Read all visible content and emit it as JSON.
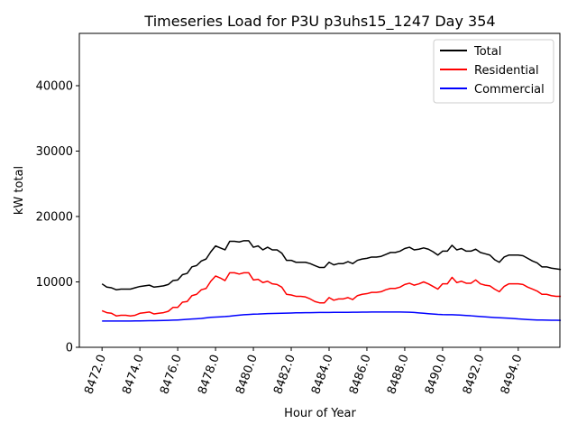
{
  "chart_data": {
    "type": "line",
    "title": "Timeseries Load for P3U p3uhs15_1247  Day 354",
    "xlabel": "Hour of Year",
    "ylabel": "kW total",
    "xlim": [
      8470.8,
      8496.2
    ],
    "ylim": [
      0,
      48000
    ],
    "x_ticks": [
      8472,
      8474,
      8476,
      8478,
      8480,
      8482,
      8484,
      8486,
      8488,
      8490,
      8492,
      8494
    ],
    "x_tick_labels": [
      "8472.0",
      "8474.0",
      "8476.0",
      "8478.0",
      "8480.0",
      "8482.0",
      "8484.0",
      "8486.0",
      "8488.0",
      "8490.0",
      "8492.0",
      "8494.0"
    ],
    "y_ticks": [
      0,
      10000,
      20000,
      30000,
      40000
    ],
    "y_tick_labels": [
      "0",
      "10000",
      "20000",
      "30000",
      "40000"
    ],
    "legend_position": "top-right",
    "x_start": 8472.0,
    "x_step": 0.25,
    "series": [
      {
        "name": "Total",
        "color": "#000000",
        "values": [
          9700,
          9200,
          9100,
          8800,
          8900,
          8900,
          8900,
          9100,
          9300,
          9400,
          9500,
          9200,
          9300,
          9400,
          9600,
          10200,
          10300,
          11100,
          11300,
          12300,
          12500,
          13200,
          13500,
          14600,
          15500,
          15200,
          14900,
          16200,
          16200,
          16100,
          16300,
          16300,
          15300,
          15500,
          14900,
          15300,
          14900,
          14900,
          14400,
          13300,
          13300,
          13000,
          13000,
          13000,
          12800,
          12500,
          12200,
          12200,
          13000,
          12600,
          12800,
          12800,
          13100,
          12800,
          13300,
          13500,
          13600,
          13800,
          13800,
          13900,
          14200,
          14500,
          14500,
          14700,
          15100,
          15300,
          14900,
          15000,
          15200,
          15000,
          14600,
          14100,
          14700,
          14700,
          15600,
          14900,
          15100,
          14700,
          14700,
          15000,
          14500,
          14300,
          14100,
          13400,
          13000,
          13800,
          14100,
          14100,
          14100,
          14000,
          13600,
          13200,
          12900,
          12300,
          12300,
          12100,
          12000,
          11900
        ]
      },
      {
        "name": "Residential",
        "color": "#ff0000",
        "values": [
          5600,
          5300,
          5200,
          4800,
          4900,
          4900,
          4800,
          4900,
          5200,
          5300,
          5400,
          5100,
          5200,
          5300,
          5500,
          6100,
          6100,
          6900,
          7000,
          7900,
          8100,
          8800,
          9000,
          10100,
          10900,
          10600,
          10200,
          11400,
          11400,
          11200,
          11400,
          11400,
          10300,
          10400,
          9900,
          10100,
          9700,
          9600,
          9200,
          8100,
          8000,
          7800,
          7800,
          7700,
          7400,
          7000,
          6800,
          6800,
          7600,
          7200,
          7400,
          7400,
          7600,
          7300,
          7900,
          8100,
          8200,
          8400,
          8400,
          8500,
          8800,
          9000,
          9000,
          9200,
          9600,
          9800,
          9500,
          9700,
          10000,
          9700,
          9300,
          8900,
          9700,
          9700,
          10700,
          9900,
          10100,
          9800,
          9800,
          10300,
          9700,
          9500,
          9400,
          8900,
          8500,
          9300,
          9700,
          9700,
          9700,
          9600,
          9200,
          8900,
          8600,
          8100,
          8100,
          7900,
          7800,
          7800
        ]
      },
      {
        "name": "Commercial",
        "color": "#0000ff",
        "values": [
          4020,
          4010,
          4010,
          4010,
          4020,
          4020,
          4020,
          4030,
          4040,
          4050,
          4060,
          4060,
          4080,
          4100,
          4120,
          4150,
          4180,
          4220,
          4270,
          4320,
          4370,
          4420,
          4500,
          4580,
          4620,
          4660,
          4700,
          4760,
          4840,
          4920,
          4980,
          5020,
          5060,
          5080,
          5120,
          5150,
          5170,
          5190,
          5210,
          5230,
          5250,
          5270,
          5280,
          5290,
          5300,
          5310,
          5320,
          5330,
          5330,
          5340,
          5340,
          5340,
          5350,
          5360,
          5370,
          5380,
          5380,
          5390,
          5390,
          5390,
          5390,
          5390,
          5390,
          5390,
          5380,
          5370,
          5320,
          5260,
          5200,
          5140,
          5080,
          5030,
          5000,
          4990,
          4980,
          4950,
          4910,
          4860,
          4820,
          4760,
          4700,
          4650,
          4600,
          4550,
          4510,
          4480,
          4440,
          4400,
          4340,
          4300,
          4250,
          4210,
          4180,
          4170,
          4150,
          4140,
          4130,
          4120
        ]
      }
    ]
  }
}
